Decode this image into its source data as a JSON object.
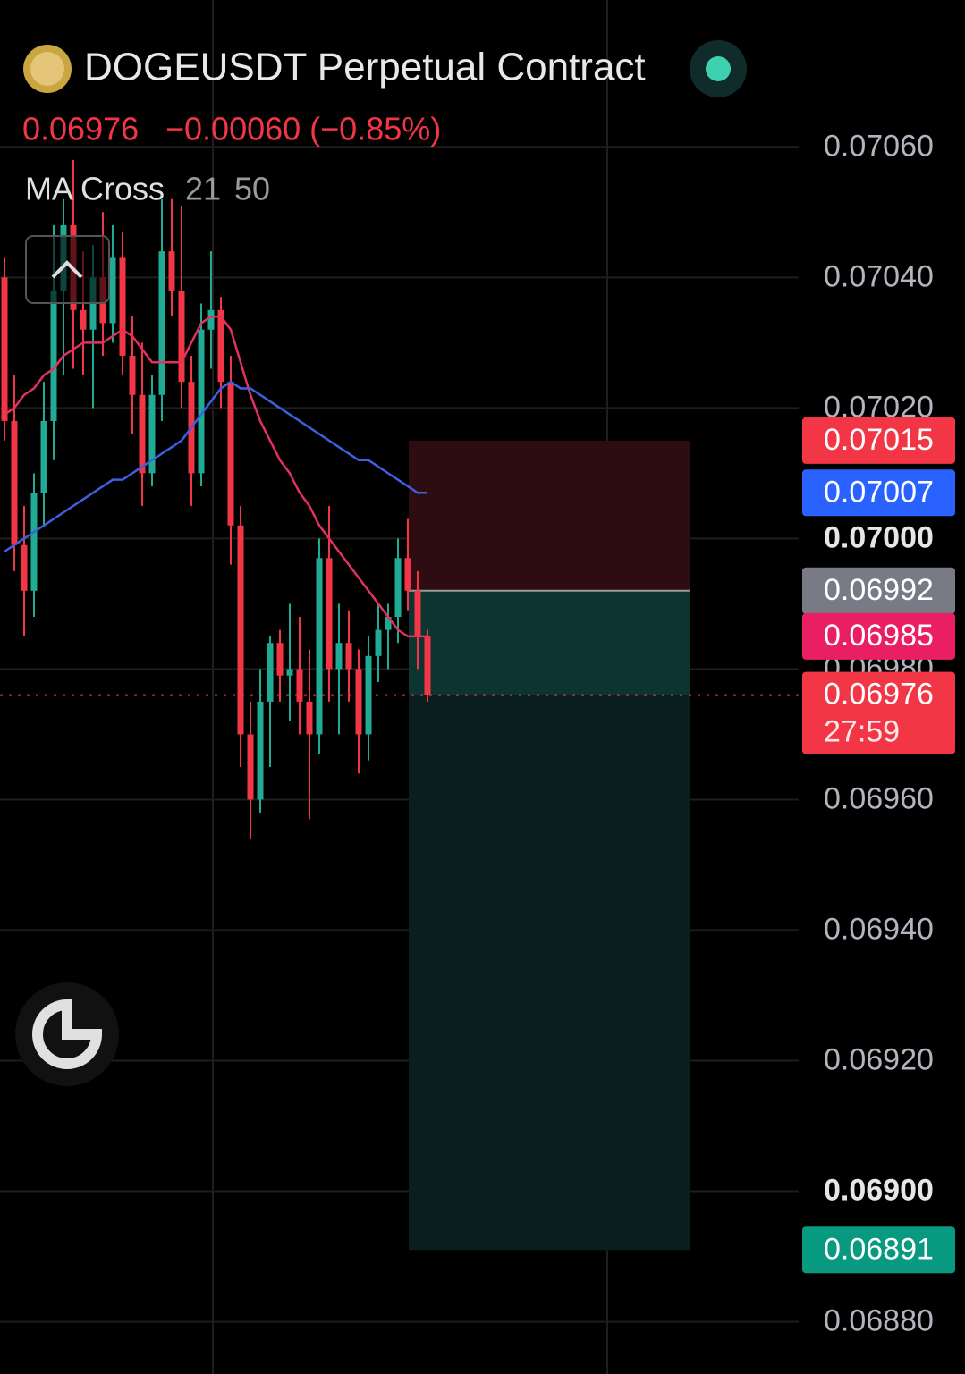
{
  "chart_data": {
    "type": "candlestick",
    "title": "DOGEUSDT Perpetual Contract",
    "last_price": "0.06976",
    "change": "−0.00060 (−0.85%)",
    "indicator": "MA Cross",
    "ylim": [
      0.06872,
      0.070825
    ],
    "yticks": [
      {
        "value": 0.0706,
        "label": "0.07060"
      },
      {
        "value": 0.0704,
        "label": "0.07040"
      },
      {
        "value": 0.0702,
        "label": "0.07020"
      },
      {
        "value": 0.07,
        "label": "0.07000",
        "bold": true
      },
      {
        "value": 0.0698,
        "label": "0.06980"
      },
      {
        "value": 0.0696,
        "label": "0.06960"
      },
      {
        "value": 0.0694,
        "label": "0.06940"
      },
      {
        "value": 0.0692,
        "label": "0.06920"
      },
      {
        "value": 0.069,
        "label": "0.06900",
        "bold": true
      },
      {
        "value": 0.0688,
        "label": "0.06880"
      }
    ],
    "grid": true,
    "up_color": "#22ab94",
    "down_color": "#f23645",
    "open": [
      0.0704,
      0.07018,
      0.06999,
      0.06992,
      0.07007,
      0.07018,
      0.07038,
      0.07048,
      0.07035,
      0.07032,
      0.0704,
      0.07033,
      0.07043,
      0.07028,
      0.07022,
      0.0701,
      0.07022,
      0.07044,
      0.07038,
      0.07024,
      0.0701,
      0.07032,
      0.07035,
      0.07024,
      0.07002,
      0.0697,
      0.0696,
      0.06975,
      0.06984,
      0.06979,
      0.0698,
      0.06975,
      0.0697,
      0.06997,
      0.0698,
      0.06984,
      0.0698,
      0.0697,
      0.06982,
      0.06986,
      0.06988,
      0.06997,
      0.06992,
      0.06985
    ],
    "high": [
      0.07043,
      0.07025,
      0.07005,
      0.0701,
      0.07024,
      0.07048,
      0.07052,
      0.07058,
      0.07044,
      0.07045,
      0.0705,
      0.07048,
      0.07047,
      0.07034,
      0.0703,
      0.07025,
      0.07052,
      0.07052,
      0.07051,
      0.07028,
      0.07036,
      0.07044,
      0.07037,
      0.07028,
      0.07005,
      0.06975,
      0.0698,
      0.06985,
      0.06986,
      0.0699,
      0.06988,
      0.06983,
      0.07,
      0.07005,
      0.0699,
      0.06989,
      0.06983,
      0.06985,
      0.0699,
      0.0699,
      0.07,
      0.07003,
      0.06995,
      0.06986
    ],
    "low": [
      0.07015,
      0.06995,
      0.06985,
      0.06988,
      0.07002,
      0.07012,
      0.07025,
      0.07026,
      0.07025,
      0.0702,
      0.07028,
      0.0703,
      0.07025,
      0.07016,
      0.07005,
      0.07008,
      0.07018,
      0.07034,
      0.0702,
      0.07005,
      0.07008,
      0.07026,
      0.0702,
      0.06996,
      0.06965,
      0.06954,
      0.06958,
      0.06965,
      0.06975,
      0.06972,
      0.0697,
      0.06957,
      0.06967,
      0.06975,
      0.0697,
      0.06975,
      0.06964,
      0.06966,
      0.06978,
      0.0698,
      0.06984,
      0.06989,
      0.0698,
      0.06975
    ],
    "close": [
      0.07018,
      0.06999,
      0.06992,
      0.07007,
      0.07018,
      0.07038,
      0.07048,
      0.07035,
      0.07032,
      0.0704,
      0.07033,
      0.07043,
      0.07028,
      0.07022,
      0.0701,
      0.07022,
      0.07044,
      0.07038,
      0.07024,
      0.0701,
      0.07032,
      0.07035,
      0.07024,
      0.07002,
      0.0697,
      0.0696,
      0.06975,
      0.06984,
      0.06979,
      0.0698,
      0.06975,
      0.0697,
      0.06997,
      0.0698,
      0.06984,
      0.0698,
      0.0697,
      0.06982,
      0.06986,
      0.06988,
      0.06997,
      0.06992,
      0.06985,
      0.06976
    ],
    "series": [
      {
        "name": "21",
        "color": "#e2315f",
        "values": [
          0.07019,
          0.0702,
          0.07022,
          0.07023,
          0.07025,
          0.07026,
          0.07028,
          0.07029,
          0.0703,
          0.0703,
          0.0703,
          0.07031,
          0.07032,
          0.07031,
          0.07029,
          0.07027,
          0.07027,
          0.07027,
          0.07027,
          0.0703,
          0.07033,
          0.07034,
          0.07034,
          0.07032,
          0.07027,
          0.07022,
          0.07018,
          0.07015,
          0.07012,
          0.0701,
          0.07007,
          0.07005,
          0.07002,
          0.07,
          0.06998,
          0.06996,
          0.06994,
          0.06992,
          0.0699,
          0.06988,
          0.06986,
          0.06985,
          0.06985,
          0.06985
        ]
      },
      {
        "name": "50",
        "color": "#3d5fe0",
        "values": [
          0.06998,
          0.06999,
          0.07,
          0.07001,
          0.07002,
          0.07003,
          0.07004,
          0.07005,
          0.07006,
          0.07007,
          0.07008,
          0.07009,
          0.07009,
          0.0701,
          0.07011,
          0.07012,
          0.07013,
          0.07014,
          0.07015,
          0.07017,
          0.07019,
          0.07021,
          0.07023,
          0.07024,
          0.07023,
          0.07023,
          0.07022,
          0.07021,
          0.0702,
          0.07019,
          0.07018,
          0.07017,
          0.07016,
          0.07015,
          0.07014,
          0.07013,
          0.07012,
          0.07012,
          0.07011,
          0.0701,
          0.07009,
          0.07008,
          0.07007,
          0.07007
        ]
      }
    ],
    "price_tags": [
      {
        "value": 0.07015,
        "color": "#f23645"
      },
      {
        "value": 0.07007,
        "color": "#2962ff"
      },
      {
        "value": 0.06992,
        "color": "#787b86"
      },
      {
        "value": 0.06985,
        "color": "#e91e63"
      },
      {
        "value": 0.06976,
        "color": "#f23645",
        "countdown": "27:59"
      },
      {
        "value": 0.06891,
        "color": "#089981"
      }
    ]
  }
}
